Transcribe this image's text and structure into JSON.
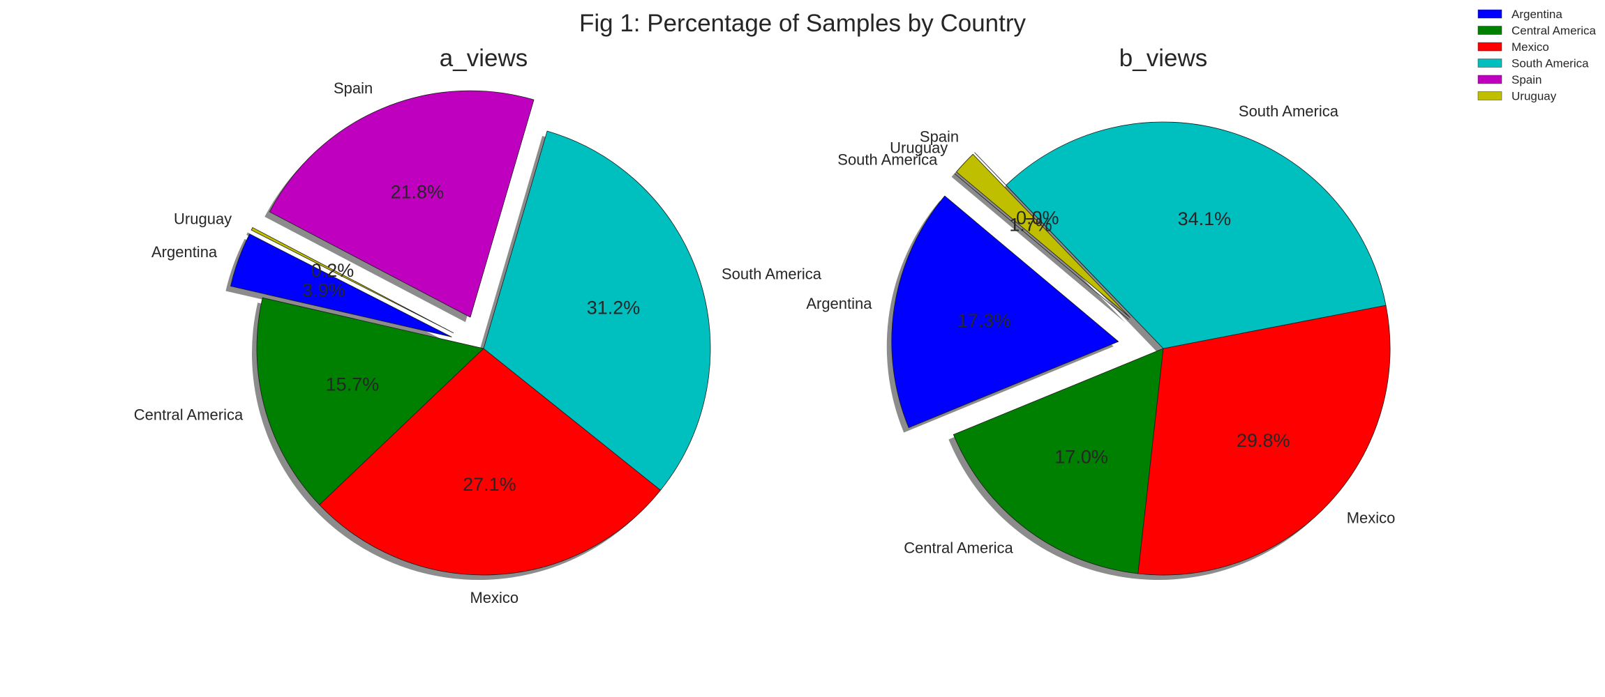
{
  "figure_title": "Fig 1: Percentage of Samples by Country",
  "legend": {
    "placement": "top-right",
    "entries": [
      {
        "label": "Argentina",
        "color": "#0000ff"
      },
      {
        "label": "Central America",
        "color": "#008000"
      },
      {
        "label": "Mexico",
        "color": "#ff0000"
      },
      {
        "label": "South America",
        "color": "#00bfbf"
      },
      {
        "label": "Spain",
        "color": "#bf00bf"
      },
      {
        "label": "Uruguay",
        "color": "#bfbf00"
      }
    ]
  },
  "chart_data": [
    {
      "type": "pie",
      "title": "a_views",
      "shadow": true,
      "slices": [
        {
          "label": "Argentina",
          "pct_label": "3.9%",
          "value": 3.9,
          "color": "#0000ff",
          "exploded": true
        },
        {
          "label": "Central America",
          "pct_label": "15.7%",
          "value": 15.7,
          "color": "#008000",
          "exploded": false
        },
        {
          "label": "Mexico",
          "pct_label": "27.1%",
          "value": 27.1,
          "color": "#ff0000",
          "exploded": false
        },
        {
          "label": "South America",
          "pct_label": "31.2%",
          "value": 31.2,
          "color": "#00bfbf",
          "exploded": false
        },
        {
          "label": "Spain",
          "pct_label": "21.8%",
          "value": 21.8,
          "color": "#bf00bf",
          "exploded": true
        },
        {
          "label": "Uruguay",
          "pct_label": "0.2%",
          "value": 0.2,
          "color": "#bfbf00",
          "exploded": true
        }
      ]
    },
    {
      "type": "pie",
      "title": "b_views",
      "shadow": true,
      "slices": [
        {
          "label": "Argentina",
          "pct_label": "17.3%",
          "value": 17.3,
          "color": "#0000ff",
          "exploded": true
        },
        {
          "label": "Central America",
          "pct_label": "17.0%",
          "value": 17.0,
          "color": "#008000",
          "exploded": false
        },
        {
          "label": "Mexico",
          "pct_label": "29.8%",
          "value": 29.8,
          "color": "#ff0000",
          "exploded": false
        },
        {
          "label": "South America",
          "pct_label": "34.1%",
          "value": 34.1,
          "color": "#00bfbf",
          "exploded": false
        },
        {
          "label": "Spain",
          "pct_label": "0.0%",
          "value": 0.0,
          "color": "#bf00bf",
          "exploded": true
        },
        {
          "label": "Uruguay",
          "pct_label": "1.7%",
          "value": 1.7,
          "color": "#bfbf00",
          "exploded": true
        },
        {
          "label": "South America",
          "pct_label": "",
          "value": 0.0,
          "color": "#00bfbf",
          "exploded": true
        }
      ]
    }
  ]
}
